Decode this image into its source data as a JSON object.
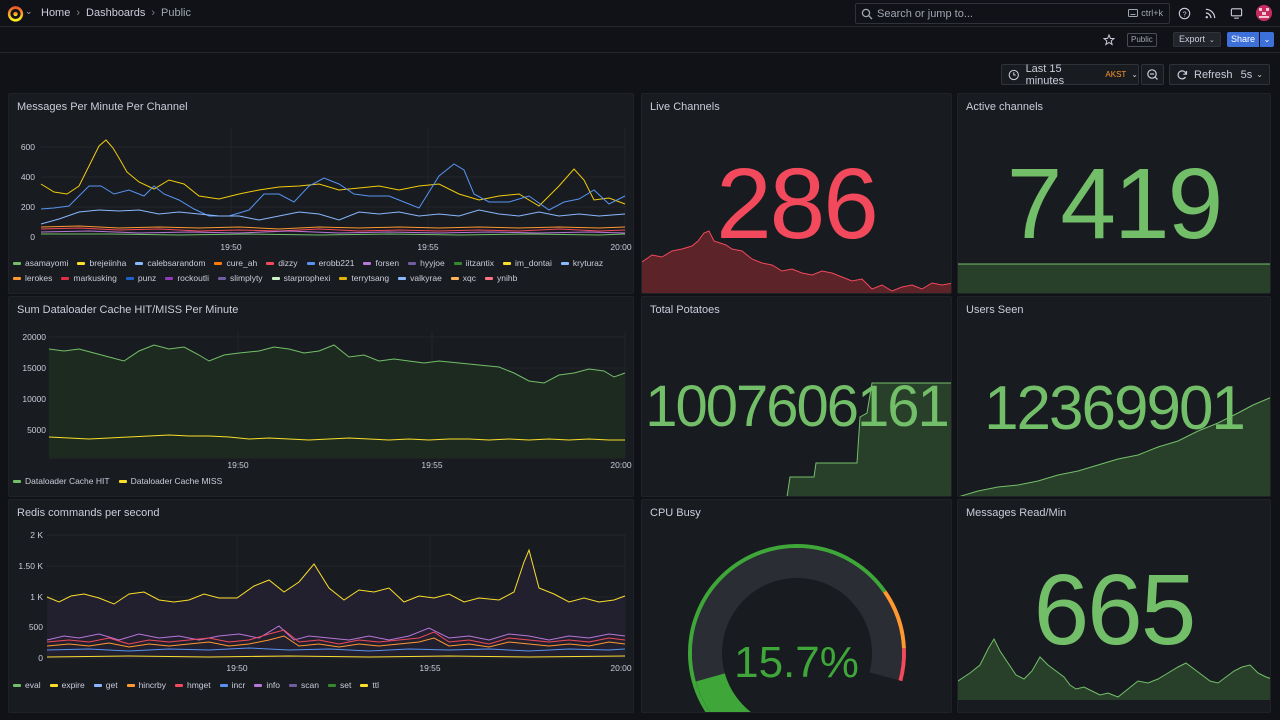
{
  "topbar": {
    "breadcrumb": [
      {
        "label": "Home"
      },
      {
        "label": "Dashboards"
      },
      {
        "label": "Public"
      }
    ],
    "search": {
      "placeholder": "Search or jump to...",
      "shortcut": "ctrl+k"
    }
  },
  "toolbar": {
    "public_badge": "Public",
    "export_label": "Export",
    "share_label": "Share"
  },
  "timepicker": {
    "range": "Last 15 minutes",
    "timezone": "AKST"
  },
  "refresh": {
    "label": "Refresh",
    "interval": "5s"
  },
  "colors": {
    "red": "#f2495c",
    "green": "#73bf69",
    "blue": "#5794f2",
    "yellow": "#fade2a",
    "orange": "#ff9830",
    "bg": "#181b1f"
  },
  "panels": {
    "messages_per_minute": {
      "title": "Messages Per Minute Per Channel",
      "yticks": [
        "600",
        "400",
        "200",
        "0"
      ],
      "xticks": [
        "19:50",
        "19:55",
        "20:00"
      ],
      "legend": [
        {
          "name": "asamayomi",
          "color": "#73bf69"
        },
        {
          "name": "brejeiinha",
          "color": "#fade2a"
        },
        {
          "name": "calebsarandom",
          "color": "#8ab8ff"
        },
        {
          "name": "cure_ah",
          "color": "#ff780a"
        },
        {
          "name": "dizzy",
          "color": "#f2495c"
        },
        {
          "name": "erobb221",
          "color": "#5794f2"
        },
        {
          "name": "forsen",
          "color": "#b877d9"
        },
        {
          "name": "hyyjoe",
          "color": "#705da0"
        },
        {
          "name": "iitzantix",
          "color": "#37872d"
        },
        {
          "name": "im_dontai",
          "color": "#fade2a"
        },
        {
          "name": "kryturaz",
          "color": "#8ab8ff"
        },
        {
          "name": "lerokes",
          "color": "#ff9830"
        },
        {
          "name": "markusking",
          "color": "#e02f44"
        },
        {
          "name": "punz",
          "color": "#1f60c4"
        },
        {
          "name": "rockoutli",
          "color": "#8f3bb8"
        },
        {
          "name": "slimplyty",
          "color": "#6e5da0"
        },
        {
          "name": "starprophexi",
          "color": "#c8f2c2"
        },
        {
          "name": "terrytsang",
          "color": "#e0b400"
        },
        {
          "name": "valkyrae",
          "color": "#8ab8ff"
        },
        {
          "name": "xqc",
          "color": "#ffb357"
        },
        {
          "name": "ynihb",
          "color": "#ff7383"
        }
      ]
    },
    "live_channels": {
      "title": "Live Channels",
      "value": "286"
    },
    "active_channels": {
      "title": "Active channels",
      "value": "7419"
    },
    "dataloader": {
      "title": "Sum Dataloader Cache HIT/MISS Per Minute",
      "yticks": [
        "20000",
        "15000",
        "10000",
        "5000"
      ],
      "xticks": [
        "19:50",
        "19:55",
        "20:00"
      ],
      "legend": [
        {
          "name": "Dataloader Cache HIT",
          "color": "#73bf69"
        },
        {
          "name": "Dataloader Cache MISS",
          "color": "#fade2a"
        }
      ]
    },
    "total_potatoes": {
      "title": "Total Potatoes",
      "value": "1007606161"
    },
    "users_seen": {
      "title": "Users Seen",
      "value": "12369901"
    },
    "redis": {
      "title": "Redis commands per second",
      "yticks": [
        "2 K",
        "1.50 K",
        "1 K",
        "500",
        "0"
      ],
      "xticks": [
        "19:50",
        "19:55",
        "20:00"
      ],
      "legend": [
        {
          "name": "eval",
          "color": "#73bf69"
        },
        {
          "name": "expire",
          "color": "#fade2a"
        },
        {
          "name": "get",
          "color": "#8ab8ff"
        },
        {
          "name": "hincrby",
          "color": "#ff9830"
        },
        {
          "name": "hmget",
          "color": "#f2495c"
        },
        {
          "name": "incr",
          "color": "#5794f2"
        },
        {
          "name": "info",
          "color": "#b877d9"
        },
        {
          "name": "scan",
          "color": "#705da0"
        },
        {
          "name": "set",
          "color": "#37872d"
        },
        {
          "name": "ttl",
          "color": "#fade2a"
        }
      ]
    },
    "cpu_busy": {
      "title": "CPU Busy",
      "value": "15.7%",
      "percent": 15.7
    },
    "messages_read": {
      "title": "Messages Read/Min",
      "value": "665"
    }
  }
}
